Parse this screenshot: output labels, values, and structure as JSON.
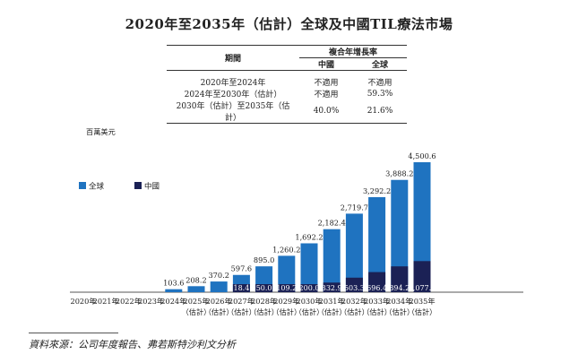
{
  "title": "2020年至2035年（估計）全球及中國TIL療法市場",
  "cagr_table": {
    "period_header": "期間",
    "cagr_header": "複合年增長率",
    "col_china": "中國",
    "col_global": "全球",
    "rows": [
      {
        "period": "2020年至2024年",
        "china": "不適用",
        "global": "不適用"
      },
      {
        "period": "2024年至2030年（估計）",
        "china": "不適用",
        "global": "59.3%"
      },
      {
        "period": "2030年（估計）至2035年（估計）",
        "china": "40.0%",
        "global": "21.6%"
      }
    ]
  },
  "unit_label": "百萬美元",
  "legend": {
    "global": "全球",
    "china": "中國"
  },
  "source": "資料來源：公司年度報告、弗若斯特沙利文分析",
  "colors": {
    "global": "#1f73c0",
    "china": "#1b2155",
    "axis": "#555555"
  },
  "chart_data": {
    "type": "bar",
    "title": "2020年至2035年（估計）全球及中國TIL療法市場",
    "ylabel": "百萬美元",
    "categories": [
      [
        "2020年",
        ""
      ],
      [
        "2021年",
        ""
      ],
      [
        "2022年",
        ""
      ],
      [
        "2023年",
        ""
      ],
      [
        "2024年",
        ""
      ],
      [
        "2025年",
        "（估計）"
      ],
      [
        "2026年",
        "（估計）"
      ],
      [
        "2027年",
        "（估計）"
      ],
      [
        "2028年",
        "（估計）"
      ],
      [
        "2029年",
        "（估計）"
      ],
      [
        "2030年",
        "（估計）"
      ],
      [
        "2031年",
        "（估計）"
      ],
      [
        "2032年",
        "（估計）"
      ],
      [
        "2033年",
        "（估計）"
      ],
      [
        "2034年",
        "（估計）"
      ],
      [
        "2035年",
        "（估計）"
      ]
    ],
    "series": [
      {
        "name": "全球",
        "values": [
          null,
          null,
          null,
          null,
          103.6,
          208.2,
          370.2,
          597.6,
          895.0,
          1260.2,
          1692.2,
          2182.4,
          2719.7,
          3292.2,
          3888.2,
          4500.6
        ],
        "labels": [
          "",
          "",
          "",
          "",
          "103.6",
          "208.2",
          "370.2",
          "597.6",
          "895.0",
          "1,260.2",
          "1,692.2",
          "2,182.4",
          "2,719.7",
          "3,292.2",
          "3,888.2",
          "4,500.6"
        ]
      },
      {
        "name": "中國",
        "values": [
          null,
          null,
          null,
          null,
          null,
          null,
          null,
          18.4,
          50.0,
          109.2,
          200.0,
          332.9,
          503.3,
          696.4,
          894.2,
          1077.1
        ],
        "labels": [
          "",
          "",
          "",
          "",
          "",
          "",
          "",
          "18.4",
          "50.0",
          "109.2",
          "200.0",
          "332.9",
          "503.3",
          "696.4",
          "894.2",
          "1,077.1"
        ]
      }
    ],
    "ylim": [
      0,
      4500.6
    ]
  }
}
